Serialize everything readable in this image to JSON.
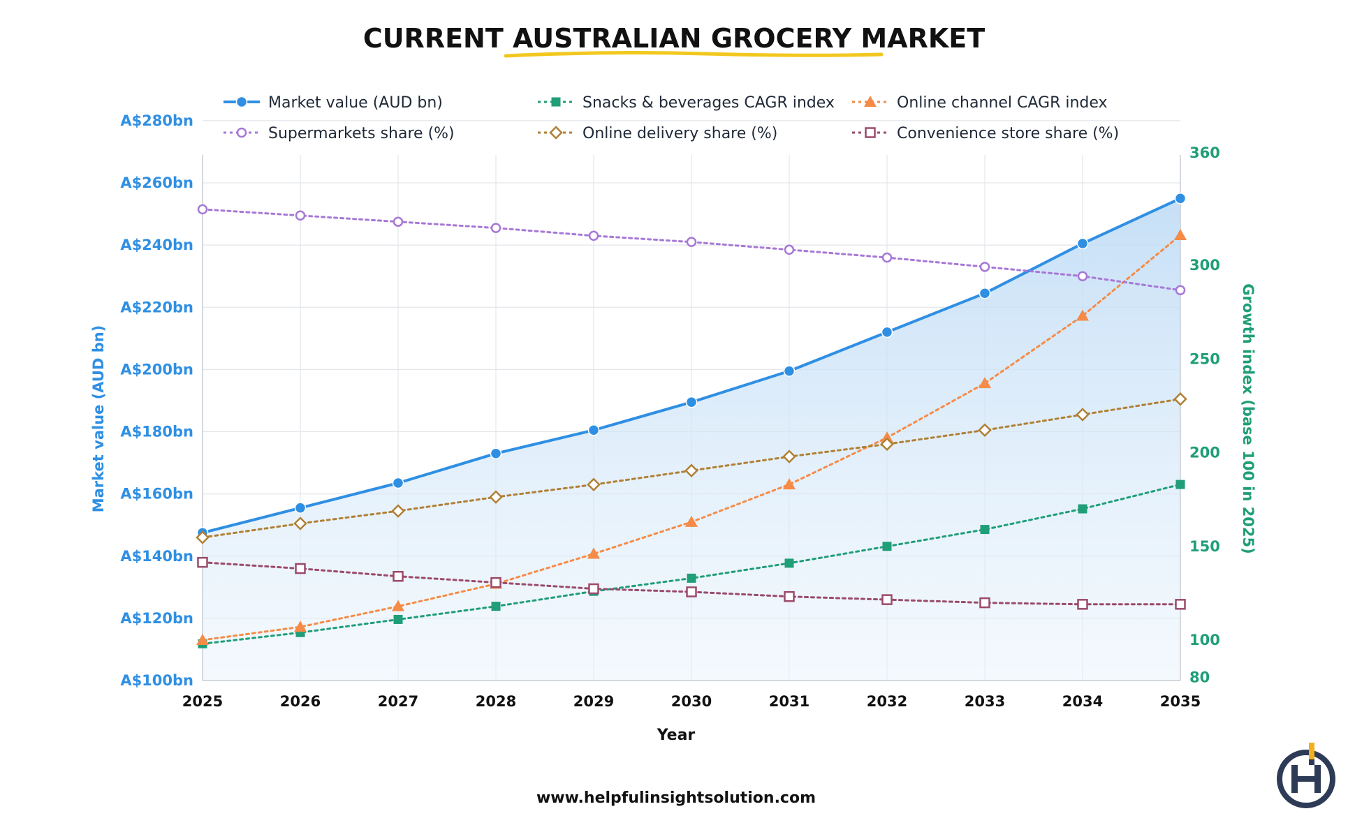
{
  "chart_data": {
    "type": "line",
    "title": "CURRENT AUSTRALIAN GROCERY MARKET",
    "xlabel": "Year",
    "ylabel": "Market value (AUD bn)",
    "y2label": "Growth index (base 100 in 2025)",
    "x": [
      2025,
      2026,
      2027,
      2028,
      2029,
      2030,
      2031,
      2032,
      2033,
      2034,
      2035
    ],
    "x_tick_labels": [
      "2025",
      "2026",
      "2027",
      "2028",
      "2029",
      "2030",
      "2031",
      "2032",
      "2033",
      "2034",
      "2035"
    ],
    "ylim": [
      100,
      290
    ],
    "y2lim": [
      80,
      365
    ],
    "y_ticks": [
      100,
      120,
      140,
      160,
      180,
      200,
      220,
      240,
      260,
      280
    ],
    "y_tick_labels": [
      "A$100bn",
      "A$120bn",
      "A$140bn",
      "A$160bn",
      "A$180bn",
      "A$200bn",
      "A$220bn",
      "A$240bn",
      "A$260bn",
      "A$280bn"
    ],
    "y2_ticks": [
      80,
      100,
      150,
      200,
      250,
      300,
      360
    ],
    "y2_tick_labels": [
      "80",
      "100",
      "150",
      "200",
      "250",
      "300",
      "360"
    ],
    "grid": true,
    "legend_position": "top",
    "series": [
      {
        "name": "Market value (AUD bn)",
        "axis": "left",
        "style": "solid",
        "marker": "circle-filled",
        "color": "#2f8fe3",
        "area_fill": true,
        "values": [
          147.5,
          155.5,
          163.5,
          173.0,
          180.5,
          189.5,
          199.5,
          212.0,
          224.5,
          240.5,
          255.0
        ]
      },
      {
        "name": "Snacks & beverages CAGR index",
        "axis": "right",
        "style": "dotted",
        "marker": "square-filled",
        "color": "#1f9e78",
        "values": [
          98,
          104,
          111,
          118,
          126,
          133,
          141,
          150,
          159,
          170,
          183
        ]
      },
      {
        "name": "Online channel CAGR index",
        "axis": "right",
        "style": "dotted",
        "marker": "triangle-filled",
        "color": "#f58b47",
        "values": [
          100,
          107,
          118,
          130,
          146,
          163,
          183,
          208,
          237,
          273,
          316
        ]
      },
      {
        "name": "Supermarkets share (%)",
        "axis": "left",
        "style": "dotted",
        "marker": "circle-open",
        "color": "#a678d6",
        "values": [
          251.5,
          249.5,
          247.5,
          245.5,
          243.0,
          241.0,
          238.5,
          236.0,
          233.0,
          230.0,
          225.5
        ]
      },
      {
        "name": "Online delivery share (%)",
        "axis": "left",
        "style": "dotted",
        "marker": "diamond-open",
        "color": "#b08035",
        "values": [
          146.0,
          150.5,
          154.5,
          159.0,
          163.0,
          167.5,
          172.0,
          176.0,
          180.5,
          185.5,
          190.5
        ]
      },
      {
        "name": "Convenience store share (%)",
        "axis": "left",
        "style": "dotted",
        "marker": "square-open",
        "color": "#9b4a6b",
        "values": [
          138.0,
          136.0,
          133.5,
          131.5,
          129.5,
          128.5,
          127.0,
          126.0,
          125.0,
          124.5,
          124.5
        ]
      }
    ]
  },
  "footer": {
    "url": "www.helpfulinsightsolution.com"
  },
  "logo": {
    "icon": "hi-logo-icon"
  }
}
